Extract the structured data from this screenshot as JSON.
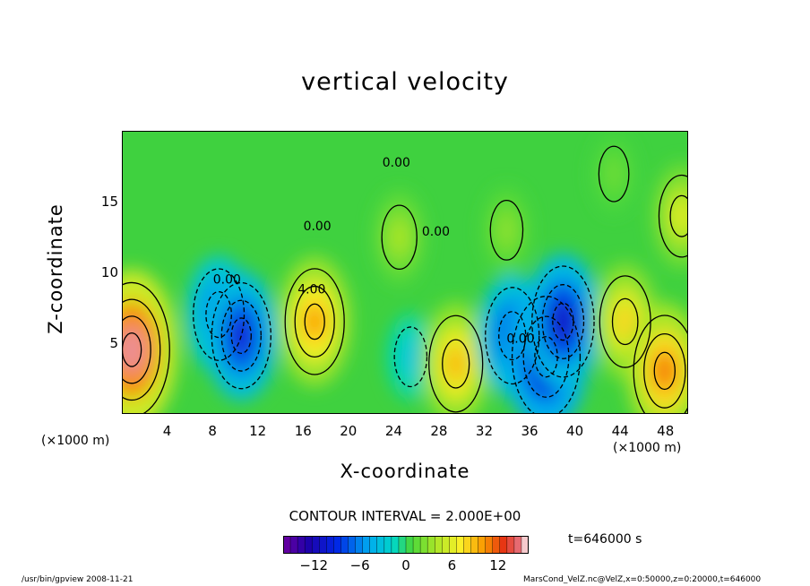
{
  "chart_data": {
    "type": "heatmap",
    "title": "vertical velocity",
    "xlabel": "X-coordinate",
    "ylabel": "Z-coordinate",
    "x_unit": "(×1000 m)",
    "xlim": [
      0,
      50
    ],
    "ylim": [
      0,
      20
    ],
    "x_ticks": [
      "4",
      "8",
      "12",
      "16",
      "20",
      "24",
      "28",
      "32",
      "36",
      "40",
      "44",
      "48"
    ],
    "y_ticks": [
      "5",
      "10",
      "15"
    ],
    "contour_interval": "CONTOUR INTERVAL = 2.000E+00",
    "colorbar_ticks": [
      "−12",
      "−6",
      "0",
      "6",
      "12"
    ],
    "colorbar_range": [
      -16,
      16
    ],
    "contour_labels": [
      "0.00",
      "0.00",
      "0.00",
      "4.00",
      "0.00",
      "0.00"
    ],
    "time": "t=646000 s",
    "cells": [
      {
        "x": 0.8,
        "z": 4.5,
        "value": 15
      },
      {
        "x": 8.5,
        "z": 7,
        "value": -8
      },
      {
        "x": 10.5,
        "z": 5.5,
        "value": -10
      },
      {
        "x": 17,
        "z": 6.5,
        "value": 10
      },
      {
        "x": 25.5,
        "z": 4,
        "value": -3
      },
      {
        "x": 29.5,
        "z": 3.5,
        "value": 9
      },
      {
        "x": 34.5,
        "z": 5.5,
        "value": -9
      },
      {
        "x": 37.5,
        "z": 4,
        "value": -13
      },
      {
        "x": 39,
        "z": 6.5,
        "value": -11
      },
      {
        "x": 44.5,
        "z": 6.5,
        "value": 8
      },
      {
        "x": 48,
        "z": 3,
        "value": 11
      },
      {
        "x": 24.5,
        "z": 12.5,
        "value": 4
      },
      {
        "x": 34,
        "z": 13,
        "value": 3
      },
      {
        "x": 43.5,
        "z": 17,
        "value": 2
      },
      {
        "x": 49.5,
        "z": 14,
        "value": 6
      }
    ]
  },
  "footer": {
    "left": "/usr/bin/gpview   2008-11-21",
    "right": "MarsCond_VelZ.nc@VelZ,x=0:50000,z=0:20000,t=646000"
  }
}
